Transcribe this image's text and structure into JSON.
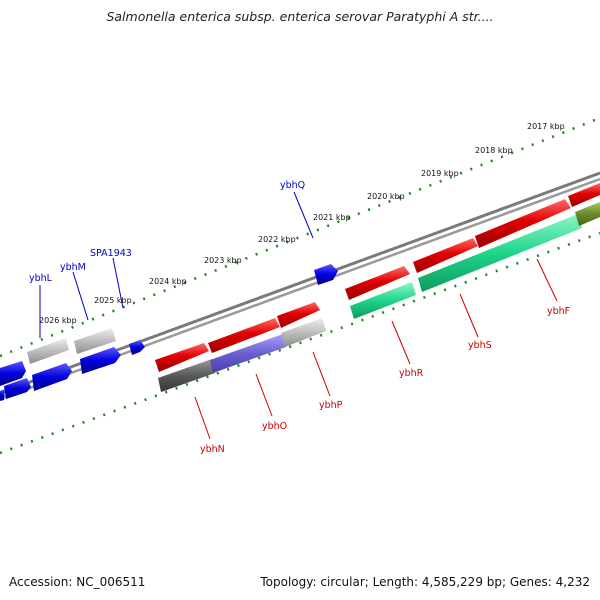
{
  "title": "Salmonella enterica subsp. enterica serovar Paratyphi A str....",
  "footer": {
    "accession": "Accession: NC_006511",
    "summary": "Topology: circular; Length: 4,585,229 bp; Genes: 4,232"
  },
  "scale_labels": [
    "2017 kbp",
    "2018 kbp",
    "2019 kbp",
    "2020 kbp",
    "2021 kbp",
    "2022 kbp",
    "2023 kbp",
    "2024 kbp",
    "2025 kbp",
    "2026 kbp"
  ],
  "gene_labels": {
    "forward": [
      "ybhQ",
      "SPA1943",
      "ybhM",
      "ybhL"
    ],
    "reverse": [
      "ybhF",
      "ybhS",
      "ybhR",
      "ybhP",
      "ybhO",
      "ybhN"
    ]
  },
  "colors": {
    "forward_label": "#0000cc",
    "reverse_label": "#cc0000",
    "tick": "#1f8a1f",
    "backbone": "#7a7a7a",
    "red_gene": "#e00000",
    "green_gene": "#1fd48a",
    "blue_gene": "#0000dd",
    "gray_gene": "#bdbdbd",
    "purple_gene": "#6b5fd0",
    "dark_gene": "#5a5a5a",
    "olive_gene": "#6b8a2a"
  }
}
